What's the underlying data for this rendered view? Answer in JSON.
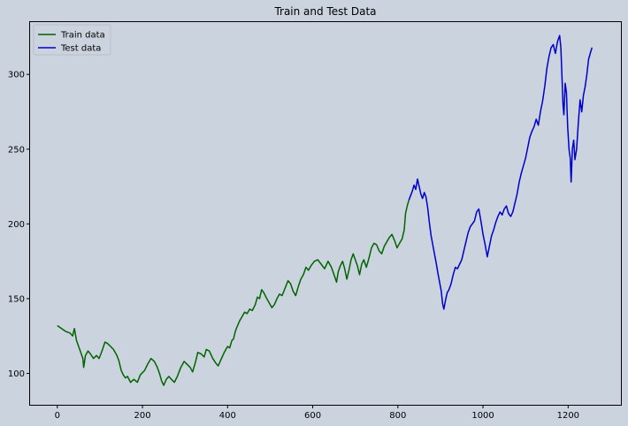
{
  "chart_data": {
    "type": "line",
    "title": "Train and Test Data",
    "xlabel": "",
    "ylabel": "",
    "xlim": [
      -64,
      1324
    ],
    "ylim": [
      79,
      335
    ],
    "x_ticks": [
      0,
      200,
      400,
      600,
      800,
      1000,
      1200
    ],
    "y_ticks": [
      100,
      150,
      200,
      250,
      300
    ],
    "legend_position": "top-left",
    "grid": false,
    "background_color": "#cbd3de",
    "series": [
      {
        "name": "Train data",
        "color": "#006400",
        "points": [
          [
            0,
            132
          ],
          [
            10,
            130
          ],
          [
            20,
            128
          ],
          [
            30,
            127
          ],
          [
            36,
            125
          ],
          [
            40,
            130
          ],
          [
            45,
            122
          ],
          [
            50,
            118
          ],
          [
            55,
            114
          ],
          [
            60,
            110
          ],
          [
            62,
            104
          ],
          [
            66,
            112
          ],
          [
            72,
            115
          ],
          [
            78,
            113
          ],
          [
            85,
            110
          ],
          [
            92,
            112
          ],
          [
            98,
            110
          ],
          [
            105,
            115
          ],
          [
            112,
            121
          ],
          [
            118,
            120
          ],
          [
            125,
            118
          ],
          [
            132,
            116
          ],
          [
            140,
            112
          ],
          [
            145,
            108
          ],
          [
            150,
            102
          ],
          [
            155,
            99
          ],
          [
            160,
            97
          ],
          [
            165,
            98
          ],
          [
            172,
            94
          ],
          [
            180,
            96
          ],
          [
            188,
            94
          ],
          [
            195,
            99
          ],
          [
            205,
            102
          ],
          [
            212,
            106
          ],
          [
            220,
            110
          ],
          [
            228,
            108
          ],
          [
            235,
            104
          ],
          [
            240,
            100
          ],
          [
            245,
            95
          ],
          [
            250,
            92
          ],
          [
            256,
            96
          ],
          [
            262,
            98
          ],
          [
            268,
            96
          ],
          [
            275,
            94
          ],
          [
            282,
            98
          ],
          [
            290,
            104
          ],
          [
            298,
            108
          ],
          [
            305,
            106
          ],
          [
            312,
            104
          ],
          [
            318,
            101
          ],
          [
            325,
            108
          ],
          [
            330,
            114
          ],
          [
            338,
            113
          ],
          [
            345,
            111
          ],
          [
            350,
            116
          ],
          [
            357,
            115
          ],
          [
            365,
            110
          ],
          [
            372,
            107
          ],
          [
            378,
            105
          ],
          [
            384,
            109
          ],
          [
            392,
            114
          ],
          [
            400,
            118
          ],
          [
            405,
            117
          ],
          [
            410,
            122
          ],
          [
            414,
            123
          ],
          [
            418,
            128
          ],
          [
            422,
            131
          ],
          [
            428,
            135
          ],
          [
            434,
            138
          ],
          [
            440,
            141
          ],
          [
            446,
            140
          ],
          [
            452,
            143
          ],
          [
            458,
            142
          ],
          [
            465,
            146
          ],
          [
            470,
            151
          ],
          [
            475,
            150
          ],
          [
            480,
            156
          ],
          [
            485,
            154
          ],
          [
            492,
            150
          ],
          [
            498,
            147
          ],
          [
            504,
            144
          ],
          [
            510,
            146
          ],
          [
            516,
            150
          ],
          [
            522,
            153
          ],
          [
            528,
            152
          ],
          [
            535,
            157
          ],
          [
            542,
            162
          ],
          [
            548,
            160
          ],
          [
            554,
            155
          ],
          [
            560,
            152
          ],
          [
            566,
            158
          ],
          [
            572,
            163
          ],
          [
            578,
            166
          ],
          [
            584,
            171
          ],
          [
            590,
            169
          ],
          [
            596,
            172
          ],
          [
            604,
            175
          ],
          [
            612,
            176
          ],
          [
            620,
            173
          ],
          [
            628,
            170
          ],
          [
            636,
            175
          ],
          [
            644,
            171
          ],
          [
            650,
            166
          ],
          [
            656,
            161
          ],
          [
            660,
            168
          ],
          [
            665,
            172
          ],
          [
            670,
            175
          ],
          [
            675,
            170
          ],
          [
            680,
            163
          ],
          [
            685,
            169
          ],
          [
            690,
            176
          ],
          [
            695,
            180
          ],
          [
            700,
            176
          ],
          [
            705,
            172
          ],
          [
            710,
            166
          ],
          [
            715,
            173
          ],
          [
            720,
            176
          ],
          [
            726,
            171
          ],
          [
            732,
            177
          ],
          [
            738,
            184
          ],
          [
            744,
            187
          ],
          [
            750,
            186
          ],
          [
            756,
            182
          ],
          [
            762,
            180
          ],
          [
            768,
            185
          ],
          [
            774,
            188
          ],
          [
            780,
            191
          ],
          [
            786,
            193
          ],
          [
            792,
            189
          ],
          [
            798,
            184
          ],
          [
            804,
            187
          ],
          [
            810,
            190
          ],
          [
            815,
            196
          ],
          [
            818,
            207
          ],
          [
            822,
            212
          ],
          [
            826,
            216
          ]
        ]
      },
      {
        "name": "Test data",
        "color": "#0000cd",
        "points": [
          [
            826,
            216
          ],
          [
            830,
            219
          ],
          [
            834,
            222
          ],
          [
            838,
            226
          ],
          [
            842,
            223
          ],
          [
            846,
            230
          ],
          [
            850,
            225
          ],
          [
            854,
            220
          ],
          [
            858,
            217
          ],
          [
            862,
            221
          ],
          [
            866,
            218
          ],
          [
            870,
            211
          ],
          [
            874,
            201
          ],
          [
            878,
            192
          ],
          [
            882,
            186
          ],
          [
            886,
            180
          ],
          [
            890,
            174
          ],
          [
            894,
            167
          ],
          [
            898,
            161
          ],
          [
            902,
            155
          ],
          [
            905,
            147
          ],
          [
            908,
            143
          ],
          [
            912,
            149
          ],
          [
            916,
            154
          ],
          [
            920,
            156
          ],
          [
            925,
            160
          ],
          [
            930,
            166
          ],
          [
            935,
            171
          ],
          [
            940,
            170
          ],
          [
            945,
            173
          ],
          [
            950,
            176
          ],
          [
            955,
            182
          ],
          [
            960,
            188
          ],
          [
            965,
            194
          ],
          [
            970,
            198
          ],
          [
            975,
            200
          ],
          [
            980,
            202
          ],
          [
            985,
            208
          ],
          [
            990,
            210
          ],
          [
            995,
            202
          ],
          [
            1000,
            193
          ],
          [
            1005,
            186
          ],
          [
            1010,
            178
          ],
          [
            1015,
            185
          ],
          [
            1020,
            192
          ],
          [
            1025,
            196
          ],
          [
            1030,
            201
          ],
          [
            1035,
            205
          ],
          [
            1040,
            208
          ],
          [
            1045,
            206
          ],
          [
            1050,
            210
          ],
          [
            1055,
            212
          ],
          [
            1060,
            207
          ],
          [
            1065,
            205
          ],
          [
            1070,
            208
          ],
          [
            1075,
            214
          ],
          [
            1080,
            220
          ],
          [
            1085,
            228
          ],
          [
            1090,
            234
          ],
          [
            1095,
            239
          ],
          [
            1100,
            244
          ],
          [
            1105,
            251
          ],
          [
            1110,
            258
          ],
          [
            1115,
            262
          ],
          [
            1120,
            265
          ],
          [
            1125,
            270
          ],
          [
            1130,
            266
          ],
          [
            1135,
            275
          ],
          [
            1140,
            282
          ],
          [
            1145,
            292
          ],
          [
            1150,
            304
          ],
          [
            1155,
            312
          ],
          [
            1160,
            318
          ],
          [
            1165,
            320
          ],
          [
            1170,
            314
          ],
          [
            1175,
            322
          ],
          [
            1180,
            326
          ],
          [
            1183,
            318
          ],
          [
            1186,
            295
          ],
          [
            1188,
            280
          ],
          [
            1190,
            273
          ],
          [
            1193,
            294
          ],
          [
            1196,
            288
          ],
          [
            1199,
            265
          ],
          [
            1202,
            250
          ],
          [
            1205,
            244
          ],
          [
            1207,
            228
          ],
          [
            1210,
            250
          ],
          [
            1213,
            256
          ],
          [
            1216,
            243
          ],
          [
            1220,
            250
          ],
          [
            1224,
            268
          ],
          [
            1228,
            283
          ],
          [
            1232,
            275
          ],
          [
            1236,
            286
          ],
          [
            1240,
            292
          ],
          [
            1244,
            300
          ],
          [
            1248,
            310
          ],
          [
            1252,
            314
          ],
          [
            1256,
            318
          ]
        ]
      }
    ]
  }
}
